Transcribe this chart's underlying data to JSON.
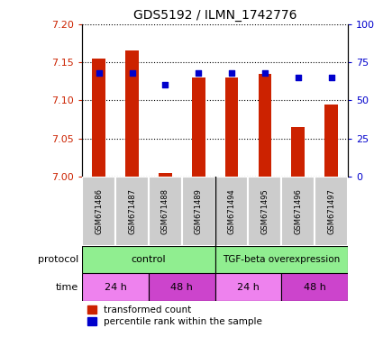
{
  "title": "GDS5192 / ILMN_1742776",
  "samples": [
    "GSM671486",
    "GSM671487",
    "GSM671488",
    "GSM671489",
    "GSM671494",
    "GSM671495",
    "GSM671496",
    "GSM671497"
  ],
  "red_values": [
    7.155,
    7.165,
    7.005,
    7.13,
    7.13,
    7.135,
    7.065,
    7.095
  ],
  "blue_values": [
    68,
    68,
    60,
    68,
    68,
    68,
    65,
    65
  ],
  "ylim_left": [
    7.0,
    7.2
  ],
  "ylim_right": [
    0,
    100
  ],
  "yticks_left": [
    7.0,
    7.05,
    7.1,
    7.15,
    7.2
  ],
  "yticks_right": [
    0,
    25,
    50,
    75,
    100
  ],
  "ytick_labels_right": [
    "0",
    "25",
    "50",
    "75",
    "100%"
  ],
  "bar_color": "#cc2200",
  "dot_color": "#0000cc",
  "background_xticklabel": "#cccccc",
  "left_axis_color": "#cc2200",
  "right_axis_color": "#0000cc",
  "bar_width": 0.4,
  "dot_size": 25,
  "protocol_color": "#90ee90",
  "time_color_light": "#ee82ee",
  "time_color_dark": "#cc44cc",
  "legend_items": [
    "transformed count",
    "percentile rank within the sample"
  ],
  "arrow_color": "#888888"
}
